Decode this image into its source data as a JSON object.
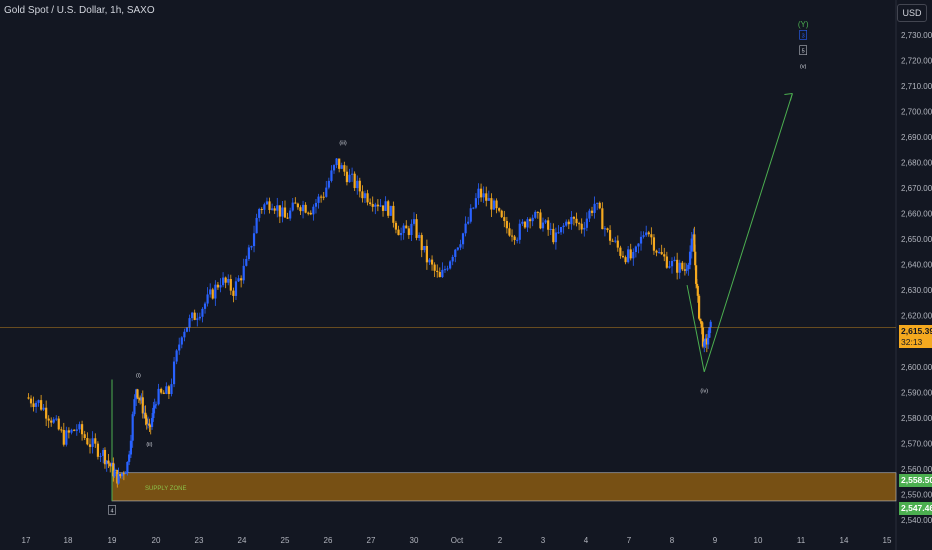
{
  "header": {
    "title": "Gold Spot / U.S. Dollar, 1h, SAXO",
    "currency": "USD"
  },
  "price_tags": {
    "current_price": "2,615.39",
    "countdown": "32:13",
    "zone_high": "2,558.50",
    "zone_low": "2,547.46"
  },
  "annotations": {
    "supply_zone": "SUPPLY ZONE",
    "wave_i": "(i)",
    "wave_ii": "(ii)",
    "wave_iii": "(iii)",
    "wave_iv": "(iv)",
    "wave_Y": "(Y)",
    "wave_3": "3",
    "wave_5": "5",
    "wave_v": "(v)",
    "wave_4": "4"
  },
  "colors": {
    "background": "#131722",
    "bull_candle": "#2962ff",
    "bear_candle": "#f5a91f",
    "projection_line": "#4caf50",
    "supply_zone_fill": "#8a5a12",
    "price_line": "#f5a91f"
  },
  "chart_data": {
    "type": "candlestick",
    "title": "Gold Spot / U.S. Dollar, 1h, SAXO",
    "ylim": [
      2540,
      2735
    ],
    "y_ticks": [
      2540,
      2550,
      2560,
      2570,
      2580,
      2590,
      2600,
      2610,
      2620,
      2630,
      2640,
      2650,
      2660,
      2670,
      2680,
      2690,
      2700,
      2710,
      2720,
      2730
    ],
    "y_tick_labels": [
      "2,540.00",
      "2,550.00",
      "2,560.00",
      "2,570.00",
      "2,580.00",
      "2,590.00",
      "2,600.00",
      "2,610.00",
      "2,620.00",
      "2,630.00",
      "2,640.00",
      "2,650.00",
      "2,660.00",
      "2,670.00",
      "2,680.00",
      "2,690.00",
      "2,700.00",
      "2,710.00",
      "2,720.00",
      "2,730.00"
    ],
    "x_ticks": [
      "17",
      "18",
      "19",
      "20",
      "23",
      "24",
      "25",
      "26",
      "27",
      "30",
      "Oct",
      "2",
      "3",
      "4",
      "7",
      "8",
      "9",
      "10",
      "11",
      "14",
      "15"
    ],
    "x_tick_index": [
      0,
      1,
      2,
      3,
      4,
      5,
      6,
      7,
      8,
      9,
      10,
      11,
      12,
      13,
      14,
      15,
      16,
      17,
      18,
      19,
      20
    ],
    "price_path": [
      [
        0,
        2588
      ],
      [
        0.3,
        2586
      ],
      [
        0.6,
        2580
      ],
      [
        0.9,
        2572
      ],
      [
        1.2,
        2576
      ],
      [
        1.5,
        2570
      ],
      [
        1.8,
        2566
      ],
      [
        2.0,
        2560
      ],
      [
        2.15,
        2556
      ],
      [
        2.35,
        2562
      ],
      [
        2.55,
        2592
      ],
      [
        2.7,
        2584
      ],
      [
        2.85,
        2574
      ],
      [
        3.0,
        2588
      ],
      [
        3.3,
        2590
      ],
      [
        3.6,
        2614
      ],
      [
        3.9,
        2620
      ],
      [
        4.2,
        2626
      ],
      [
        4.5,
        2634
      ],
      [
        4.8,
        2630
      ],
      [
        5.1,
        2640
      ],
      [
        5.4,
        2662
      ],
      [
        5.7,
        2665
      ],
      [
        6.0,
        2658
      ],
      [
        6.3,
        2664
      ],
      [
        6.6,
        2662
      ],
      [
        6.9,
        2668
      ],
      [
        7.2,
        2680
      ],
      [
        7.5,
        2674
      ],
      [
        7.8,
        2668
      ],
      [
        8.1,
        2665
      ],
      [
        8.4,
        2662
      ],
      [
        8.7,
        2652
      ],
      [
        9.0,
        2655
      ],
      [
        9.3,
        2642
      ],
      [
        9.6,
        2634
      ],
      [
        9.9,
        2645
      ],
      [
        10.2,
        2654
      ],
      [
        10.5,
        2668
      ],
      [
        10.8,
        2664
      ],
      [
        11.1,
        2655
      ],
      [
        11.4,
        2652
      ],
      [
        11.7,
        2660
      ],
      [
        12.0,
        2656
      ],
      [
        12.3,
        2650
      ],
      [
        12.6,
        2658
      ],
      [
        12.9,
        2655
      ],
      [
        13.2,
        2664
      ],
      [
        13.5,
        2652
      ],
      [
        13.8,
        2645
      ],
      [
        14.1,
        2642
      ],
      [
        14.4,
        2655
      ],
      [
        14.7,
        2644
      ],
      [
        15.0,
        2640
      ],
      [
        15.3,
        2638
      ],
      [
        15.5,
        2650
      ],
      [
        15.6,
        2625
      ],
      [
        15.75,
        2607
      ],
      [
        15.9,
        2615
      ]
    ],
    "last_price": 2615.39,
    "supply_zone": {
      "low": 2547.46,
      "high": 2558.5,
      "label": "SUPPLY ZONE"
    },
    "projection": [
      [
        15.35,
        2632
      ],
      [
        15.75,
        2598
      ],
      [
        17.8,
        2707
      ]
    ],
    "wave_labels": [
      {
        "text": "(i)",
        "x": 2.6,
        "y": 2596
      },
      {
        "text": "(ii)",
        "x": 2.85,
        "y": 2569
      },
      {
        "text": "(iii)",
        "x": 7.35,
        "y": 2687
      },
      {
        "text": "(iv)",
        "x": 15.75,
        "y": 2590
      },
      {
        "text": "(Y)",
        "x": 18.05,
        "y": 2733
      },
      {
        "text": "3",
        "x": 18.05,
        "y": 2729
      },
      {
        "text": "5",
        "x": 18.05,
        "y": 2723
      },
      {
        "text": "(v)",
        "x": 18.05,
        "y": 2717
      },
      {
        "text": "4",
        "x": 2.0,
        "y": 2543
      }
    ]
  }
}
